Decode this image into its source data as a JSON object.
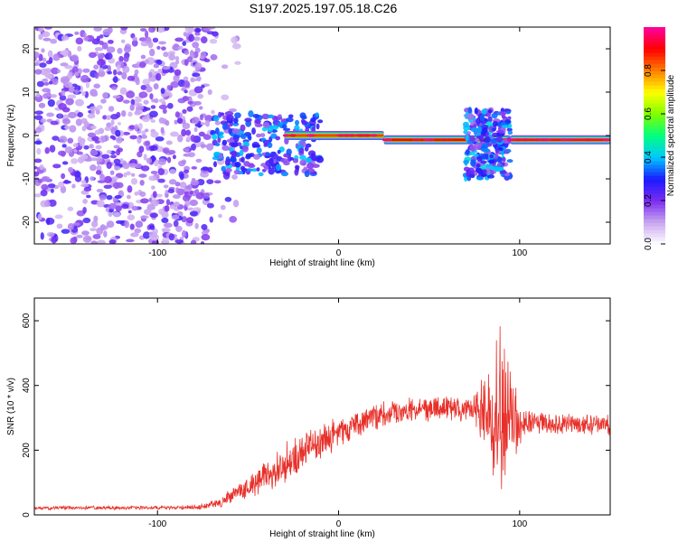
{
  "title": "S197.2025.197.05.18.C26",
  "chart_data": [
    {
      "type": "heatmap",
      "xlabel": "Height of straight line (km)",
      "ylabel": "Frequency (Hz)",
      "xlim": [
        -168,
        150
      ],
      "ylim": [
        -25,
        25
      ],
      "xticks": [
        -100,
        0,
        100
      ],
      "yticks": [
        -20,
        -10,
        0,
        10,
        20
      ],
      "colorbar": {
        "label": "Normalized spectral amplitude",
        "range": [
          0,
          1
        ],
        "ticks": [
          0.0,
          0.2,
          0.4,
          0.6,
          0.8
        ],
        "colormap": [
          "#ffffff",
          "#c9a7f0",
          "#7a2cf0",
          "#1a1aff",
          "#00c8ff",
          "#00ff80",
          "#80ff00",
          "#ffff00",
          "#ff8000",
          "#ff0000",
          "#ff00a0"
        ]
      },
      "features": [
        {
          "x_range": [
            -168,
            -70
          ],
          "freq_range": [
            -25,
            25
          ],
          "amplitude": 0.1,
          "kind": "scattered noise"
        },
        {
          "x_range": [
            -70,
            -10
          ],
          "freq_range": [
            -9,
            5
          ],
          "amplitude": 0.22,
          "kind": "dense band"
        },
        {
          "x_range": [
            -30,
            25
          ],
          "freq_center": 0,
          "amplitude": 0.85,
          "kind": "tone"
        },
        {
          "x_range": [
            25,
            95
          ],
          "freq_center": -1,
          "amplitude": 0.9,
          "kind": "tone"
        },
        {
          "x_range": [
            70,
            95
          ],
          "freq_range": [
            -10,
            6
          ],
          "amplitude": 0.25,
          "kind": "dense band"
        },
        {
          "x_range": [
            95,
            150
          ],
          "freq_center": -1,
          "amplitude": 0.95,
          "kind": "tone"
        }
      ]
    },
    {
      "type": "line",
      "xlabel": "Height of straight line (km)",
      "ylabel": "SNR (10 * v/v)",
      "xlim": [
        -168,
        150
      ],
      "ylim": [
        0,
        670
      ],
      "xticks": [
        -100,
        0,
        100
      ],
      "yticks": [
        0,
        200,
        400,
        600
      ],
      "color": "#e8302a",
      "series": [
        {
          "x": [
            -168,
            -150,
            -130,
            -110,
            -90,
            -75,
            -65,
            -55,
            -45,
            -35,
            -25,
            -15,
            -5,
            5,
            15,
            25,
            35,
            45,
            55,
            65,
            75,
            80,
            85,
            88,
            90,
            92,
            95,
            100,
            110,
            120,
            130,
            140,
            150
          ],
          "values": [
            20,
            22,
            22,
            22,
            22,
            25,
            40,
            70,
            100,
            140,
            170,
            210,
            245,
            270,
            295,
            310,
            320,
            325,
            330,
            330,
            330,
            320,
            290,
            260,
            300,
            340,
            300,
            290,
            285,
            280,
            285,
            275,
            270
          ],
          "noise": [
            5,
            5,
            5,
            5,
            5,
            8,
            15,
            30,
            45,
            55,
            60,
            55,
            50,
            45,
            40,
            35,
            35,
            35,
            35,
            35,
            45,
            100,
            170,
            260,
            300,
            240,
            150,
            60,
            35,
            30,
            30,
            30,
            35
          ]
        }
      ]
    }
  ]
}
